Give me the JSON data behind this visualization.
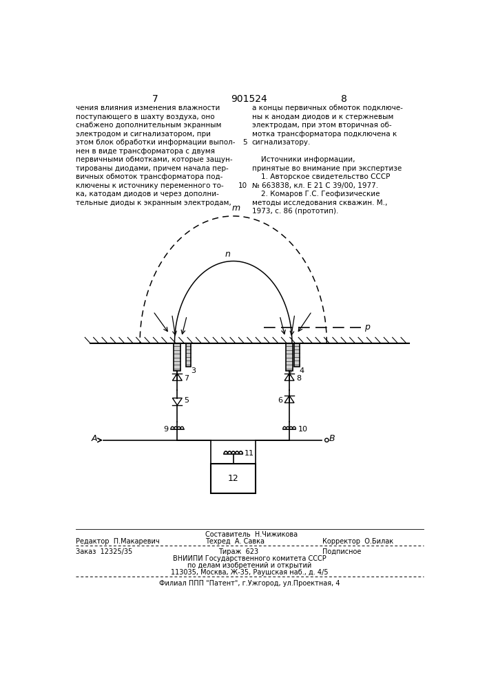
{
  "page_number_left": "7",
  "patent_number": "901524",
  "page_number_right": "8",
  "bg_color": "#ffffff",
  "text_color": "#000000",
  "left_text": [
    "чения влияния изменения влажности",
    "поступающего в шахту воздуха, оно",
    "снабжено дополнительным экранным",
    "электродом и сигнализатором, при",
    "этом блок обработки информации выпол-",
    "нен в виде трансформатора с двумя",
    "первичными обмотками, которые защун-",
    "тированы диодами, причем начала пер-",
    "вичных обмоток трансформатора под-",
    "ключены к источнику переменного то-",
    "ка, катодам диодов и через дополни-",
    "тельные диоды к экранным электродам,"
  ],
  "right_text": [
    "а концы первичных обмоток подключе-",
    "ны к анодам диодов и к стержневым",
    "электродам, при этом вторичная об-",
    "мотка трансформатора подключена к",
    "сигнализатору.",
    "",
    "    Источники информации,",
    "принятые во внимание при экспертизе",
    "    1. Авторское свидетельство СССР",
    "№ 663838, кл. Е 21 С 39/00, 1977.",
    "    2. Комаров Г.С. Геофизические",
    "методы исследования скважин. М.,",
    "1973, с. 86 (прототип)."
  ],
  "footer_line1_center": "Составитель  Н.Чижикова",
  "footer_line1_left": "Редактор  П.Макаревич",
  "footer_line2_center": "Техред  А. Савка",
  "footer_line2_right": "Корректор  О.Билак",
  "footer_line3_left": "Заказ  12325/35",
  "footer_line3_center": "Тираж  623",
  "footer_line3_right": "Подписное",
  "footer_line4": "ВНИИПИ Государственного комитета СССР",
  "footer_line5": "по делам изобретений и открытий",
  "footer_line6": "113035, Москва, Ж-35, Раушская наб., д. 4/5",
  "footer_line7": "Филиал ППП \"Патент\", г.Ужгород, ул.Проектная, 4"
}
